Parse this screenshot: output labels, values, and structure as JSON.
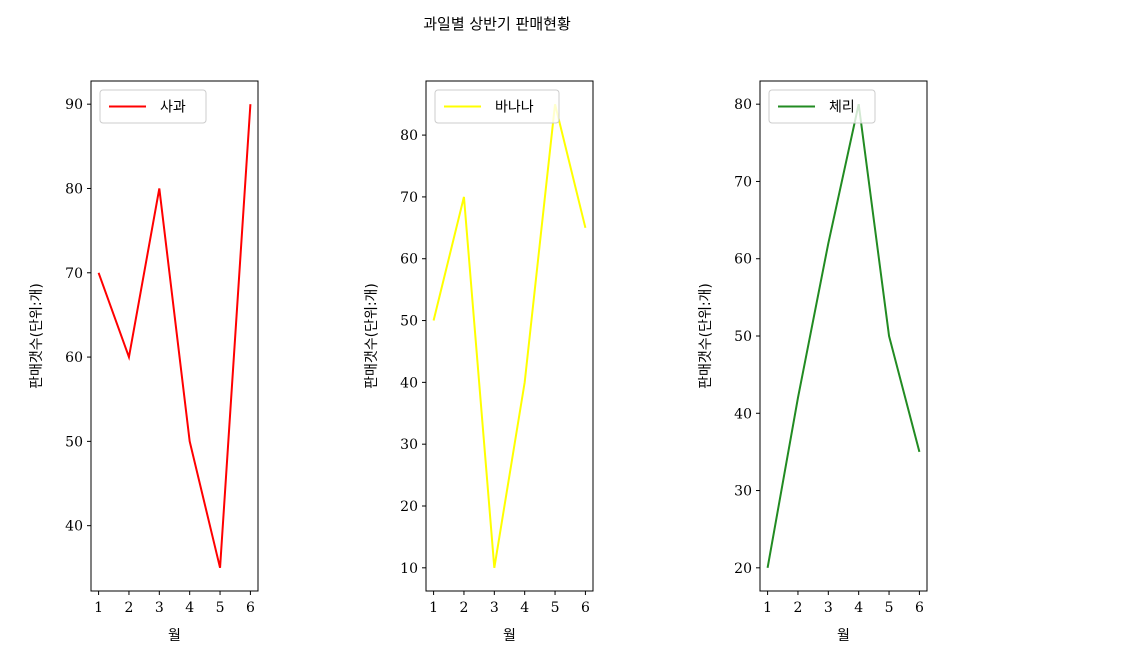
{
  "figure": {
    "title": "과일별 상반기 판매현황"
  },
  "chart_data": [
    {
      "type": "line",
      "xlabel": "월",
      "ylabel": "판매갯수(단위:개)",
      "x": [
        1,
        2,
        3,
        4,
        5,
        6
      ],
      "series": [
        {
          "name": "사과",
          "values": [
            70,
            60,
            80,
            50,
            35,
            90
          ],
          "color": "#ff0000"
        }
      ],
      "xlim": [
        0.75,
        6.25
      ],
      "ylim": [
        32.25,
        92.75
      ],
      "yticks": [
        40,
        50,
        60,
        70,
        80,
        90
      ],
      "legend": "upper left",
      "grid": false
    },
    {
      "type": "line",
      "xlabel": "월",
      "ylabel": "판매갯수(단위:개)",
      "x": [
        1,
        2,
        3,
        4,
        5,
        6
      ],
      "series": [
        {
          "name": "바나나",
          "values": [
            50,
            70,
            10,
            40,
            85,
            65
          ],
          "color": "#ffff00"
        }
      ],
      "xlim": [
        0.75,
        6.25
      ],
      "ylim": [
        6.25,
        88.75
      ],
      "yticks": [
        10,
        20,
        30,
        40,
        50,
        60,
        70,
        80
      ],
      "legend": "upper left",
      "grid": false
    },
    {
      "type": "line",
      "xlabel": "월",
      "ylabel": "판매갯수(단위:개)",
      "x": [
        1,
        2,
        3,
        4,
        5,
        6
      ],
      "series": [
        {
          "name": "체리",
          "values": [
            20,
            42,
            62,
            80,
            50,
            35
          ],
          "color": "#228b22"
        }
      ],
      "xlim": [
        0.75,
        6.25
      ],
      "ylim": [
        17,
        83
      ],
      "yticks": [
        20,
        30,
        40,
        50,
        60,
        70,
        80
      ],
      "legend": "upper left",
      "grid": false
    }
  ]
}
